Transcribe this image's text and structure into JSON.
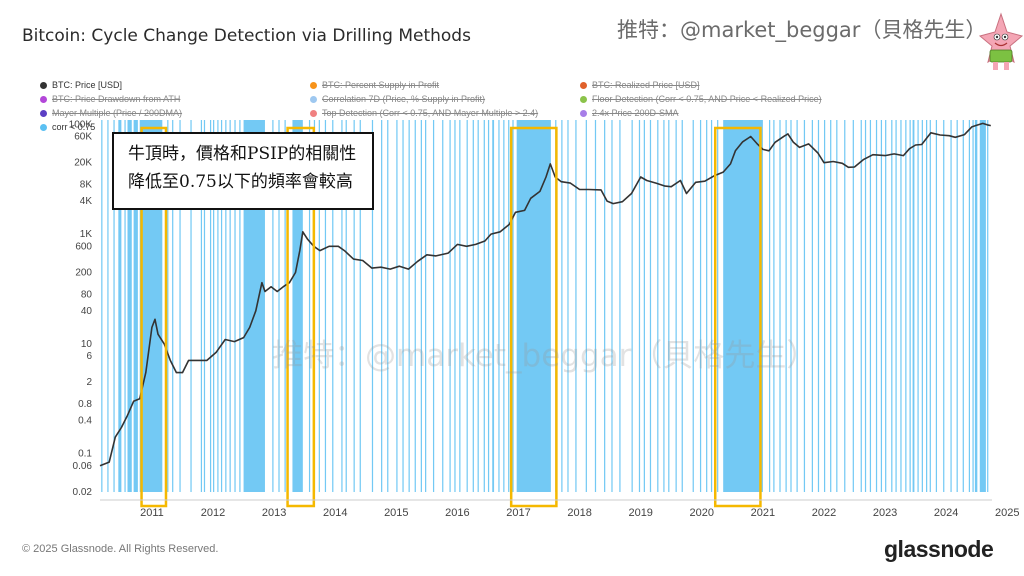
{
  "header": {
    "title": "Bitcoin: Cycle Change Detection via Drilling Methods",
    "handle": "推特：@market_beggar（貝格先生）"
  },
  "avatar": {
    "icon": "cartoon-starfish-avatar-icon"
  },
  "legend": {
    "items": [
      {
        "label": "BTC: Price [USD]",
        "color": "#333333",
        "active": true
      },
      {
        "label": "BTC: Percent Supply in Profit",
        "color": "#f7931a",
        "active": false
      },
      {
        "label": "BTC: Realized Price [USD]",
        "color": "#e0612b",
        "active": false
      },
      {
        "label": "BTC: Price Drawdown from ATH",
        "color": "#b347d9",
        "active": false
      },
      {
        "label": "Correlation 7D (Price, % Supply in Profit)",
        "color": "#9ec8f0",
        "active": false
      },
      {
        "label": "Floor Detection (Corr < 0.75, AND Price < Realized Price)",
        "color": "#8bc34a",
        "active": false
      },
      {
        "label": "Mayer Multiple (Price / 200DMA)",
        "color": "#5b3fc4",
        "active": false
      },
      {
        "label": "Top Detection (Corr < 0.75, AND Mayer Multiple > 2.4)",
        "color": "#f08080",
        "active": false
      },
      {
        "label": "2.4x Price 200D-SMA",
        "color": "#a77ee8",
        "active": false
      },
      {
        "label": "corr < 0.75",
        "color": "#5bc0f2",
        "active": true
      }
    ]
  },
  "annotation": {
    "line1": "牛頂時，價格和PSIP的相關性",
    "line2": "降低至0.75以下的頻率會較高"
  },
  "watermark": "推特：@market_beggar（貝格先生）",
  "footer": {
    "copyright": "© 2025 Glassnode. All Rights Reserved.",
    "brand": "glassnode"
  },
  "colors": {
    "price": "#333333",
    "bars": "#5bc0f2",
    "highlight": "#f5b800"
  },
  "chart_data": {
    "type": "line",
    "title": "Bitcoin: Cycle Change Detection via Drilling Methods",
    "y_scale": "log",
    "ylim": [
      0.02,
      120000
    ],
    "xlim": [
      2010.6,
      2025.2
    ],
    "y_ticks": [
      0.02,
      0.06,
      0.1,
      0.4,
      0.8,
      2,
      6,
      10,
      40,
      80,
      200,
      600,
      1000,
      4000,
      8000,
      20000,
      60000,
      100000
    ],
    "y_tick_labels": [
      "0.02",
      "0.06",
      "0.1",
      "0.4",
      "0.8",
      "2",
      "6",
      "10",
      "40",
      "80",
      "200",
      "600",
      "1K",
      "4K",
      "8K",
      "20K",
      "60K",
      "100K"
    ],
    "x_ticks": [
      2011,
      2012,
      2013,
      2014,
      2015,
      2016,
      2017,
      2018,
      2019,
      2020,
      2021,
      2022,
      2023,
      2024,
      2025
    ],
    "x_tick_labels": [
      "2011",
      "2012",
      "2013",
      "2014",
      "2015",
      "2016",
      "2017",
      "2018",
      "2019",
      "2020",
      "2021",
      "2022",
      "2023",
      "2024",
      "2025"
    ],
    "grid": false,
    "series": [
      {
        "name": "BTC: Price [USD]",
        "points": [
          [
            2010.6,
            0.06
          ],
          [
            2010.75,
            0.07
          ],
          [
            2010.85,
            0.2
          ],
          [
            2010.95,
            0.3
          ],
          [
            2011.05,
            0.5
          ],
          [
            2011.15,
            0.9
          ],
          [
            2011.25,
            1.0
          ],
          [
            2011.35,
            3
          ],
          [
            2011.45,
            20
          ],
          [
            2011.5,
            28
          ],
          [
            2011.55,
            15
          ],
          [
            2011.65,
            10
          ],
          [
            2011.75,
            5
          ],
          [
            2011.85,
            3
          ],
          [
            2011.95,
            3
          ],
          [
            2012.05,
            5
          ],
          [
            2012.2,
            5
          ],
          [
            2012.35,
            5
          ],
          [
            2012.5,
            7
          ],
          [
            2012.65,
            12
          ],
          [
            2012.8,
            11
          ],
          [
            2012.95,
            13
          ],
          [
            2013.05,
            20
          ],
          [
            2013.15,
            40
          ],
          [
            2013.25,
            130
          ],
          [
            2013.3,
            90
          ],
          [
            2013.4,
            110
          ],
          [
            2013.5,
            90
          ],
          [
            2013.6,
            110
          ],
          [
            2013.7,
            130
          ],
          [
            2013.8,
            200
          ],
          [
            2013.87,
            500
          ],
          [
            2013.92,
            1100
          ],
          [
            2014.0,
            800
          ],
          [
            2014.1,
            600
          ],
          [
            2014.2,
            500
          ],
          [
            2014.35,
            600
          ],
          [
            2014.5,
            600
          ],
          [
            2014.6,
            500
          ],
          [
            2014.75,
            350
          ],
          [
            2014.9,
            330
          ],
          [
            2015.05,
            240
          ],
          [
            2015.2,
            250
          ],
          [
            2015.35,
            230
          ],
          [
            2015.5,
            260
          ],
          [
            2015.65,
            230
          ],
          [
            2015.8,
            320
          ],
          [
            2015.95,
            420
          ],
          [
            2016.1,
            400
          ],
          [
            2016.3,
            450
          ],
          [
            2016.45,
            650
          ],
          [
            2016.6,
            600
          ],
          [
            2016.75,
            650
          ],
          [
            2016.9,
            750
          ],
          [
            2017.0,
            1000
          ],
          [
            2017.15,
            1100
          ],
          [
            2017.3,
            1500
          ],
          [
            2017.4,
            2500
          ],
          [
            2017.55,
            2700
          ],
          [
            2017.65,
            4500
          ],
          [
            2017.8,
            6000
          ],
          [
            2017.9,
            11000
          ],
          [
            2017.97,
            19000
          ],
          [
            2018.05,
            11000
          ],
          [
            2018.15,
            9000
          ],
          [
            2018.3,
            8500
          ],
          [
            2018.45,
            6500
          ],
          [
            2018.6,
            6500
          ],
          [
            2018.8,
            6400
          ],
          [
            2018.9,
            4000
          ],
          [
            2019.0,
            3600
          ],
          [
            2019.15,
            3900
          ],
          [
            2019.3,
            5500
          ],
          [
            2019.45,
            11000
          ],
          [
            2019.55,
            9500
          ],
          [
            2019.7,
            8500
          ],
          [
            2019.85,
            7500
          ],
          [
            2019.95,
            7300
          ],
          [
            2020.1,
            9500
          ],
          [
            2020.2,
            5500
          ],
          [
            2020.35,
            8800
          ],
          [
            2020.5,
            9200
          ],
          [
            2020.65,
            11500
          ],
          [
            2020.8,
            13500
          ],
          [
            2020.92,
            19000
          ],
          [
            2021.0,
            33000
          ],
          [
            2021.12,
            48000
          ],
          [
            2021.25,
            60000
          ],
          [
            2021.35,
            45000
          ],
          [
            2021.45,
            35000
          ],
          [
            2021.55,
            33000
          ],
          [
            2021.65,
            47000
          ],
          [
            2021.8,
            61000
          ],
          [
            2021.86,
            67000
          ],
          [
            2021.95,
            47000
          ],
          [
            2022.05,
            38000
          ],
          [
            2022.2,
            44000
          ],
          [
            2022.35,
            30000
          ],
          [
            2022.45,
            20000
          ],
          [
            2022.6,
            21000
          ],
          [
            2022.75,
            19500
          ],
          [
            2022.85,
            16500
          ],
          [
            2022.95,
            16700
          ],
          [
            2023.1,
            23000
          ],
          [
            2023.25,
            28000
          ],
          [
            2023.45,
            27000
          ],
          [
            2023.6,
            29000
          ],
          [
            2023.75,
            27000
          ],
          [
            2023.85,
            36000
          ],
          [
            2023.95,
            42000
          ],
          [
            2024.05,
            43000
          ],
          [
            2024.2,
            70000
          ],
          [
            2024.35,
            64000
          ],
          [
            2024.5,
            62000
          ],
          [
            2024.6,
            58000
          ],
          [
            2024.75,
            65000
          ],
          [
            2024.87,
            90000
          ],
          [
            2024.95,
            96000
          ],
          [
            2025.05,
            104000
          ],
          [
            2025.12,
            98000
          ],
          [
            2025.18,
            95000
          ]
        ]
      },
      {
        "name": "corr < 0.75",
        "periods": [
          [
            2010.62,
            2010.64
          ],
          [
            2010.72,
            2010.73
          ],
          [
            2010.82,
            2010.84
          ],
          [
            2010.9,
            2010.95
          ],
          [
            2011.0,
            2011.02
          ],
          [
            2011.05,
            2011.12
          ],
          [
            2011.15,
            2011.22
          ],
          [
            2011.25,
            2011.62
          ],
          [
            2011.7,
            2011.72
          ],
          [
            2011.78,
            2011.8
          ],
          [
            2011.9,
            2011.92
          ],
          [
            2012.08,
            2012.1
          ],
          [
            2012.25,
            2012.27
          ],
          [
            2012.3,
            2012.32
          ],
          [
            2012.4,
            2012.42
          ],
          [
            2012.45,
            2012.47
          ],
          [
            2012.52,
            2012.53
          ],
          [
            2012.58,
            2012.6
          ],
          [
            2012.65,
            2012.66
          ],
          [
            2012.72,
            2012.74
          ],
          [
            2012.8,
            2012.82
          ],
          [
            2012.88,
            2012.9
          ],
          [
            2012.95,
            2013.3
          ],
          [
            2013.42,
            2013.44
          ],
          [
            2013.52,
            2013.54
          ],
          [
            2013.62,
            2013.64
          ],
          [
            2013.75,
            2013.92
          ],
          [
            2014.02,
            2014.04
          ],
          [
            2014.1,
            2014.12
          ],
          [
            2014.18,
            2014.2
          ],
          [
            2014.28,
            2014.3
          ],
          [
            2014.4,
            2014.42
          ],
          [
            2014.55,
            2014.57
          ],
          [
            2014.62,
            2014.64
          ],
          [
            2014.75,
            2014.77
          ],
          [
            2014.85,
            2014.87
          ],
          [
            2015.05,
            2015.07
          ],
          [
            2015.2,
            2015.22
          ],
          [
            2015.3,
            2015.32
          ],
          [
            2015.45,
            2015.47
          ],
          [
            2015.55,
            2015.57
          ],
          [
            2015.65,
            2015.67
          ],
          [
            2015.75,
            2015.77
          ],
          [
            2015.85,
            2015.87
          ],
          [
            2015.92,
            2015.94
          ],
          [
            2016.05,
            2016.07
          ],
          [
            2016.2,
            2016.22
          ],
          [
            2016.32,
            2016.34
          ],
          [
            2016.4,
            2016.42
          ],
          [
            2016.48,
            2016.5
          ],
          [
            2016.6,
            2016.62
          ],
          [
            2016.7,
            2016.72
          ],
          [
            2016.78,
            2016.8
          ],
          [
            2016.88,
            2016.9
          ],
          [
            2016.95,
            2016.97
          ],
          [
            2017.02,
            2017.05
          ],
          [
            2017.12,
            2017.14
          ],
          [
            2017.2,
            2017.22
          ],
          [
            2017.28,
            2017.3
          ],
          [
            2017.35,
            2017.37
          ],
          [
            2017.42,
            2017.98
          ],
          [
            2018.05,
            2018.07
          ],
          [
            2018.15,
            2018.17
          ],
          [
            2018.25,
            2018.26
          ],
          [
            2018.38,
            2018.4
          ],
          [
            2018.55,
            2018.57
          ],
          [
            2018.7,
            2018.72
          ],
          [
            2018.85,
            2018.87
          ],
          [
            2018.97,
            2018.99
          ],
          [
            2019.1,
            2019.12
          ],
          [
            2019.3,
            2019.32
          ],
          [
            2019.42,
            2019.44
          ],
          [
            2019.5,
            2019.52
          ],
          [
            2019.6,
            2019.62
          ],
          [
            2019.72,
            2019.74
          ],
          [
            2019.82,
            2019.84
          ],
          [
            2019.9,
            2019.92
          ],
          [
            2020.02,
            2020.04
          ],
          [
            2020.12,
            2020.14
          ],
          [
            2020.3,
            2020.32
          ],
          [
            2020.42,
            2020.44
          ],
          [
            2020.52,
            2020.54
          ],
          [
            2020.6,
            2020.62
          ],
          [
            2020.7,
            2020.72
          ],
          [
            2020.8,
            2021.45
          ],
          [
            2021.55,
            2021.57
          ],
          [
            2021.62,
            2021.64
          ],
          [
            2021.72,
            2021.74
          ],
          [
            2021.82,
            2021.84
          ],
          [
            2021.9,
            2021.92
          ],
          [
            2022.0,
            2022.02
          ],
          [
            2022.12,
            2022.14
          ],
          [
            2022.25,
            2022.27
          ],
          [
            2022.35,
            2022.37
          ],
          [
            2022.45,
            2022.47
          ],
          [
            2022.55,
            2022.57
          ],
          [
            2022.65,
            2022.67
          ],
          [
            2022.78,
            2022.8
          ],
          [
            2022.92,
            2022.94
          ],
          [
            2023.05,
            2023.07
          ],
          [
            2023.12,
            2023.14
          ],
          [
            2023.2,
            2023.22
          ],
          [
            2023.3,
            2023.32
          ],
          [
            2023.38,
            2023.4
          ],
          [
            2023.45,
            2023.47
          ],
          [
            2023.55,
            2023.57
          ],
          [
            2023.62,
            2023.64
          ],
          [
            2023.7,
            2023.72
          ],
          [
            2023.78,
            2023.8
          ],
          [
            2023.85,
            2023.87
          ],
          [
            2023.9,
            2023.93
          ],
          [
            2023.98,
            2024.0
          ],
          [
            2024.05,
            2024.07
          ],
          [
            2024.12,
            2024.14
          ],
          [
            2024.18,
            2024.2
          ],
          [
            2024.28,
            2024.3
          ],
          [
            2024.4,
            2024.42
          ],
          [
            2024.52,
            2024.54
          ],
          [
            2024.62,
            2024.64
          ],
          [
            2024.72,
            2024.74
          ],
          [
            2024.82,
            2024.84
          ],
          [
            2024.88,
            2024.9
          ],
          [
            2024.92,
            2024.96
          ],
          [
            2025.0,
            2025.1
          ],
          [
            2025.12,
            2025.14
          ]
        ]
      }
    ],
    "highlight_boxes": [
      [
        2011.28,
        2011.68
      ],
      [
        2013.67,
        2014.1
      ],
      [
        2017.33,
        2018.07
      ],
      [
        2020.67,
        2021.41
      ]
    ]
  }
}
